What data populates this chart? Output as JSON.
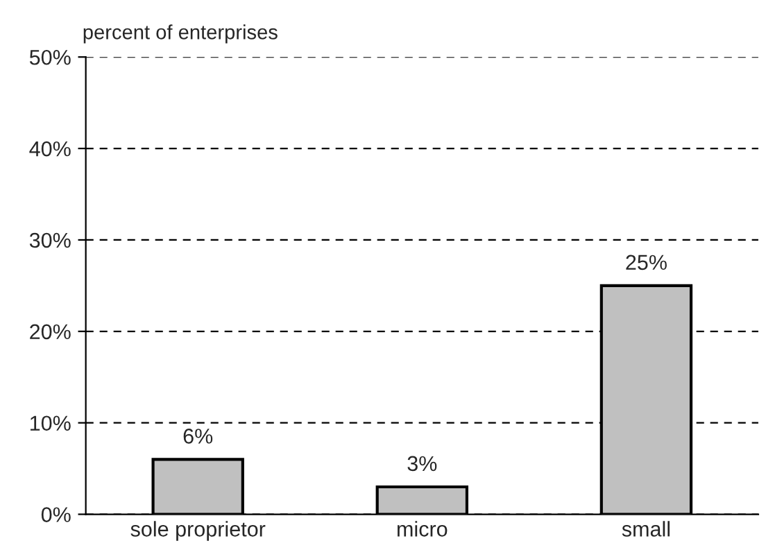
{
  "chart_data": {
    "type": "bar",
    "ylabel": "percent of enterprises",
    "categories": [
      "sole proprietor",
      "micro",
      "small"
    ],
    "values": [
      6,
      3,
      25
    ],
    "value_labels": [
      "6%",
      "3%",
      "25%"
    ],
    "color": "#c0c0c0",
    "ylim": [
      0,
      50
    ],
    "yticks": [
      {
        "value": 0,
        "label": "0%"
      },
      {
        "value": 10,
        "label": "10%"
      },
      {
        "value": 20,
        "label": "20%"
      },
      {
        "value": 30,
        "label": "30%"
      },
      {
        "value": 40,
        "label": "40%"
      },
      {
        "value": 50,
        "label": "50%"
      }
    ],
    "grid": "y",
    "legend": false
  }
}
